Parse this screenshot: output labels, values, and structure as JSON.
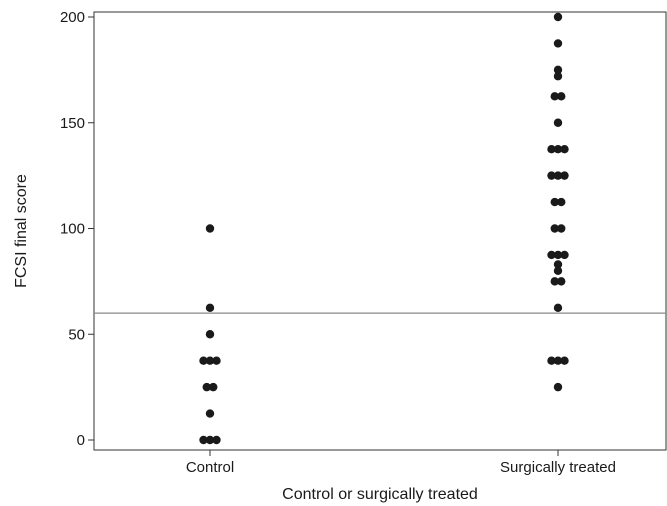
{
  "chart_data": {
    "type": "scatter",
    "xlabel": "Control or surgically treated",
    "ylabel": "FCSI final score",
    "categories": [
      "Control",
      "Surgically treated"
    ],
    "ylim": [
      0,
      200
    ],
    "yticks": [
      0,
      50,
      100,
      150,
      200
    ],
    "reference_line": {
      "y": 60
    },
    "marker_color": "#1a1a1a",
    "line_color": "#888888",
    "series": [
      {
        "category": "Control",
        "values": [
          100,
          62.5,
          50,
          37.5,
          37.5,
          37.5,
          25,
          25,
          12.5,
          0,
          0,
          0
        ]
      },
      {
        "category": "Surgically treated",
        "values": [
          200,
          187.5,
          175,
          172,
          162.5,
          162.5,
          150,
          137.5,
          137.5,
          137.5,
          125,
          125,
          125,
          112.5,
          112.5,
          100,
          100,
          87.5,
          87.5,
          87.5,
          83,
          80,
          75,
          75,
          62.5,
          37.5,
          37.5,
          37.5,
          25
        ]
      }
    ]
  }
}
